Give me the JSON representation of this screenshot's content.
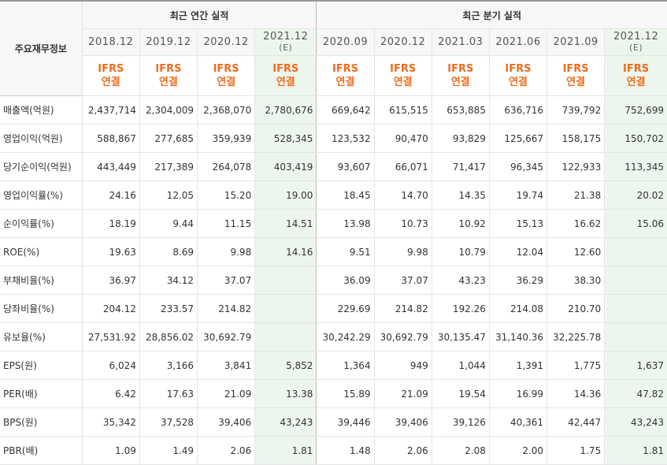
{
  "header": {
    "corner_label": "주요재무정보",
    "annual_group": "최근 연간 실적",
    "quarterly_group": "최근 분기 실적"
  },
  "periods": [
    {
      "label": "2018.12",
      "est": ""
    },
    {
      "label": "2019.12",
      "est": ""
    },
    {
      "label": "2020.12",
      "est": ""
    },
    {
      "label": "2021.12",
      "est": "(E)"
    },
    {
      "label": "2020.09",
      "est": ""
    },
    {
      "label": "2020.12",
      "est": ""
    },
    {
      "label": "2021.03",
      "est": ""
    },
    {
      "label": "2021.06",
      "est": ""
    },
    {
      "label": "2021.09",
      "est": ""
    },
    {
      "label": "2021.12",
      "est": "(E)"
    }
  ],
  "ifrs": {
    "line1": "IFRS",
    "line2": "연결"
  },
  "rows": [
    {
      "label": "매출액(억원)",
      "values": [
        "2,437,714",
        "2,304,009",
        "2,368,070",
        "2,780,676",
        "669,642",
        "615,515",
        "653,885",
        "636,716",
        "739,792",
        "752,699"
      ]
    },
    {
      "label": "영업이익(억원)",
      "values": [
        "588,867",
        "277,685",
        "359,939",
        "528,345",
        "123,532",
        "90,470",
        "93,829",
        "125,667",
        "158,175",
        "150,702"
      ]
    },
    {
      "label": "당기순이익(억원)",
      "values": [
        "443,449",
        "217,389",
        "264,078",
        "403,419",
        "93,607",
        "66,071",
        "71,417",
        "96,345",
        "122,933",
        "113,345"
      ]
    },
    {
      "label": "영업이익률(%)",
      "values": [
        "24.16",
        "12.05",
        "15.20",
        "19.00",
        "18.45",
        "14.70",
        "14.35",
        "19.74",
        "21.38",
        "20.02"
      ]
    },
    {
      "label": "순이익률(%)",
      "values": [
        "18.19",
        "9.44",
        "11.15",
        "14.51",
        "13.98",
        "10.73",
        "10.92",
        "15.13",
        "16.62",
        "15.06"
      ]
    },
    {
      "label": "ROE(%)",
      "values": [
        "19.63",
        "8.69",
        "9.98",
        "14.16",
        "9.51",
        "9.98",
        "10.79",
        "12.04",
        "12.60",
        ""
      ]
    },
    {
      "label": "부채비율(%)",
      "values": [
        "36.97",
        "34.12",
        "37.07",
        "",
        "36.09",
        "37.07",
        "43.23",
        "36.29",
        "38.30",
        ""
      ]
    },
    {
      "label": "당좌비율(%)",
      "values": [
        "204.12",
        "233.57",
        "214.82",
        "",
        "229.69",
        "214.82",
        "192.26",
        "214.08",
        "210.70",
        ""
      ]
    },
    {
      "label": "유보율(%)",
      "values": [
        "27,531.92",
        "28,856.02",
        "30,692.79",
        "",
        "30,242.29",
        "30,692.79",
        "30,135.47",
        "31,140.36",
        "32,225.78",
        ""
      ]
    },
    {
      "label": "EPS(원)",
      "values": [
        "6,024",
        "3,166",
        "3,841",
        "5,852",
        "1,364",
        "949",
        "1,044",
        "1,391",
        "1,775",
        "1,637"
      ]
    },
    {
      "label": "PER(배)",
      "values": [
        "6.42",
        "17.63",
        "21.09",
        "13.38",
        "15.89",
        "21.09",
        "19.54",
        "16.99",
        "14.36",
        "47.82"
      ]
    },
    {
      "label": "BPS(원)",
      "values": [
        "35,342",
        "37,528",
        "39,406",
        "43,243",
        "39,446",
        "39,406",
        "39,126",
        "40,361",
        "42,447",
        "43,243"
      ]
    },
    {
      "label": "PBR(배)",
      "values": [
        "1.09",
        "1.49",
        "2.06",
        "1.81",
        "1.48",
        "2.06",
        "2.08",
        "2.00",
        "1.75",
        "1.81"
      ]
    }
  ],
  "colors": {
    "ifrs": "#f26b1d",
    "estimate_bg": "#edf6ec",
    "header_bg": "#f7f7f7"
  }
}
